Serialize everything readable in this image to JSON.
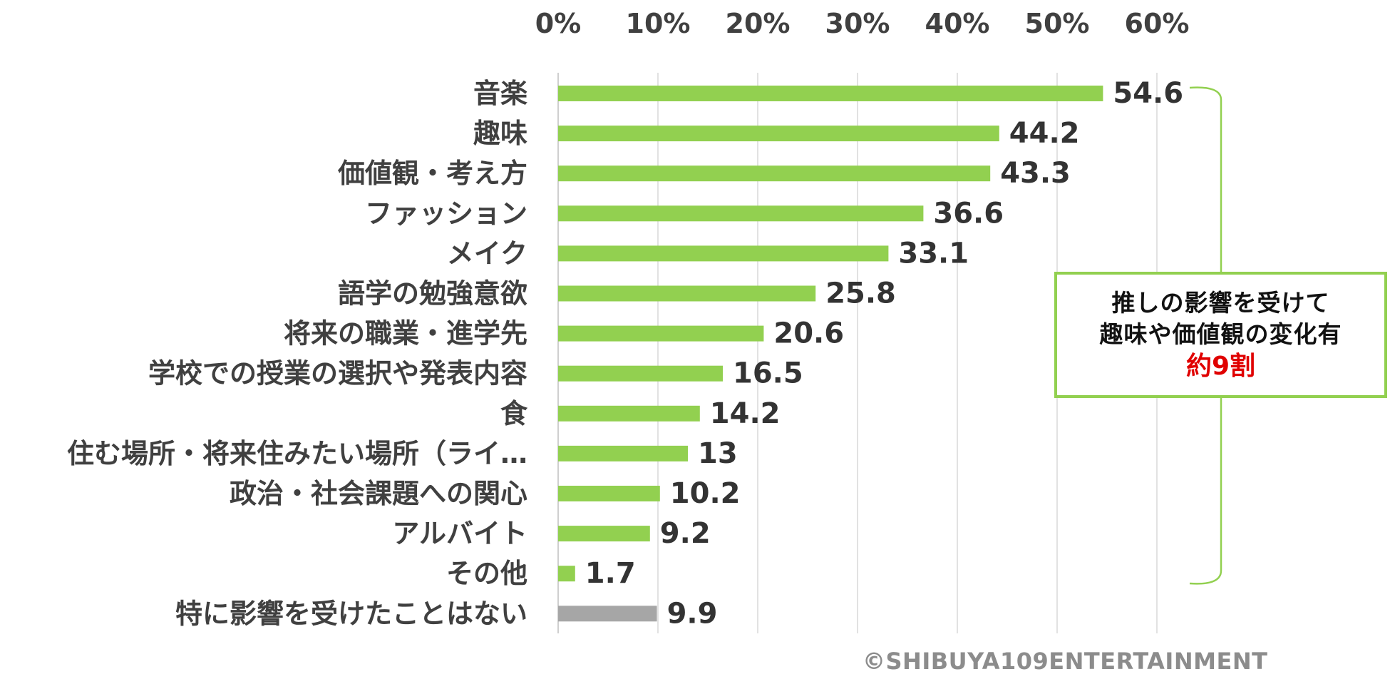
{
  "chart_data": {
    "type": "bar",
    "orientation": "horizontal",
    "x_axis_position": "top",
    "xlim": [
      0,
      60
    ],
    "x_ticks": [
      "0%",
      "10%",
      "20%",
      "30%",
      "40%",
      "50%",
      "60%"
    ],
    "grid": true,
    "categories": [
      "音楽",
      "趣味",
      "価値観・考え方",
      "ファッション",
      "メイク",
      "語学の勉強意欲",
      "将来の職業・進学先",
      "学校での授業の選択や発表内容",
      "食",
      "住む場所・将来住みたい場所（ライ…",
      "政治・社会課題への関心",
      "アルバイト",
      "その他",
      "特に影響を受けたことはない"
    ],
    "values": [
      54.6,
      44.2,
      43.3,
      36.6,
      33.1,
      25.8,
      20.6,
      16.5,
      14.2,
      13,
      10.2,
      9.2,
      1.7,
      9.9
    ],
    "value_labels": [
      "54.6",
      "44.2",
      "43.3",
      "36.6",
      "33.1",
      "25.8",
      "20.6",
      "16.5",
      "14.2",
      "13",
      "10.2",
      "9.2",
      "1.7",
      "9.9"
    ],
    "colors": {
      "bar": "#92d050",
      "bar_none": "#a6a6a6"
    },
    "annotation": {
      "lines": [
        "推しの影響を受けて",
        "趣味や価値観の変化有"
      ],
      "highlight": "約9割",
      "highlight_color": "#e00000",
      "border_color": "#92d050"
    }
  },
  "footer": {
    "copyright": "©SHIBUYA109ENTERTAINMENT"
  }
}
